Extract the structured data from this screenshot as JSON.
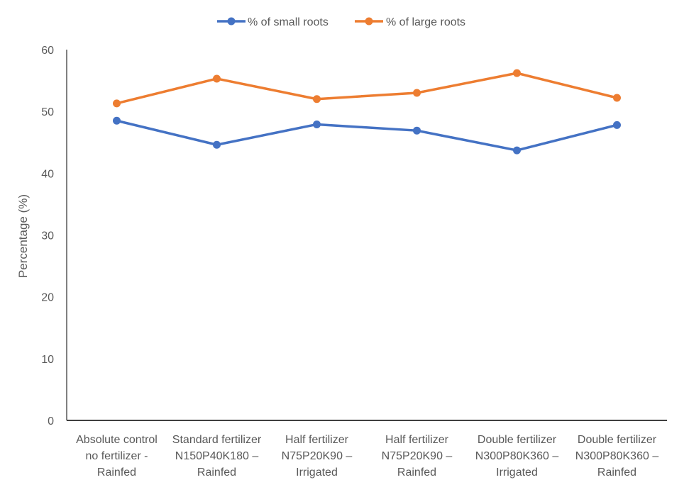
{
  "chart_data": {
    "type": "line",
    "title": "",
    "xlabel": "",
    "ylabel": "Percentage (%)",
    "ylim": [
      0,
      60
    ],
    "yticks": [
      0,
      10,
      20,
      30,
      40,
      50,
      60
    ],
    "grid": false,
    "legend_position": "top",
    "categories": [
      [
        "Absolute control",
        "no fertilizer -",
        "Rainfed"
      ],
      [
        "Standard fertilizer",
        "N150P40K180 –",
        "Rainfed"
      ],
      [
        "Half fertilizer",
        "N75P20K90 –",
        "Irrigated"
      ],
      [
        "Half fertilizer",
        "N75P20K90 –",
        "Rainfed"
      ],
      [
        "Double fertilizer",
        "N300P80K360 –",
        "Irrigated"
      ],
      [
        "Double fertilizer",
        "N300P80K360 –",
        "Rainfed"
      ]
    ],
    "series": [
      {
        "name": "% of small roots",
        "color": "#4472c4",
        "values": [
          48.5,
          44.6,
          47.9,
          46.9,
          43.7,
          47.8
        ]
      },
      {
        "name": "% of large roots",
        "color": "#ed7d31",
        "values": [
          51.3,
          55.3,
          52.0,
          53.0,
          56.2,
          52.2
        ]
      }
    ]
  }
}
